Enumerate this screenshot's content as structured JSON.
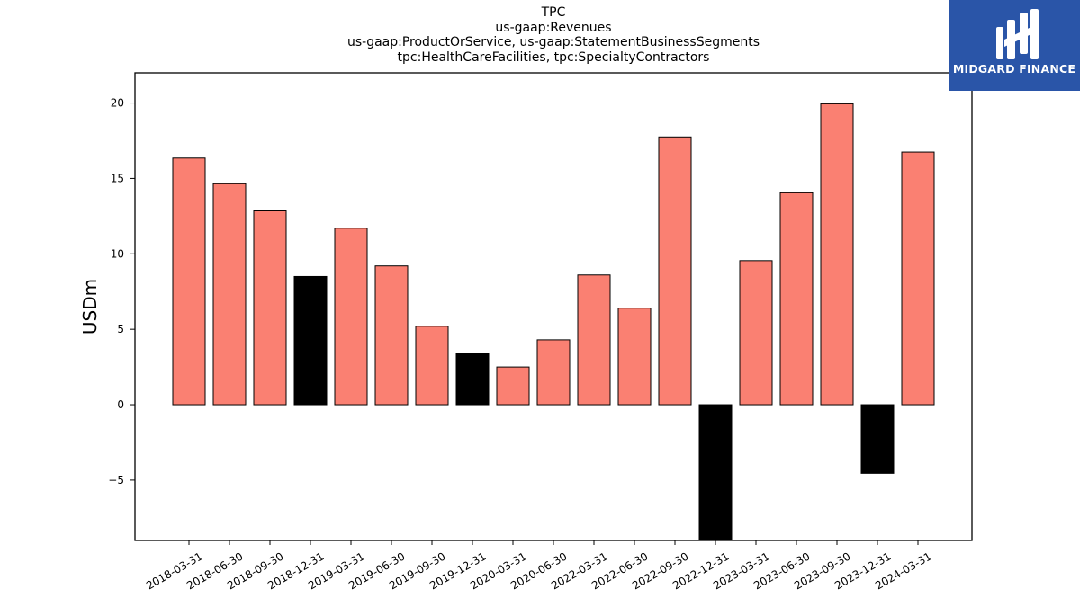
{
  "chart_data": {
    "type": "bar",
    "title_lines": [
      "TPC",
      "us-gaap:Revenues",
      "us-gaap:ProductOrService, us-gaap:StatementBusinessSegments",
      "tpc:HealthCareFacilities, tpc:SpecialtyContractors"
    ],
    "xlabel": "",
    "ylabel": "USDm",
    "categories": [
      "2018-03-31",
      "2018-06-30",
      "2018-09-30",
      "2018-12-31",
      "2019-03-31",
      "2019-06-30",
      "2019-09-30",
      "2019-12-31",
      "2020-03-31",
      "2020-06-30",
      "2022-03-31",
      "2022-06-30",
      "2022-09-30",
      "2022-12-31",
      "2023-03-31",
      "2023-06-30",
      "2023-09-30",
      "2023-12-31",
      "2024-03-31"
    ],
    "values": [
      16.35,
      14.65,
      12.85,
      8.5,
      11.7,
      9.2,
      5.2,
      3.4,
      2.5,
      4.3,
      8.6,
      6.4,
      17.75,
      -9.0,
      9.55,
      14.05,
      19.95,
      -4.55,
      16.75
    ],
    "highlight": [
      false,
      false,
      false,
      true,
      false,
      false,
      false,
      true,
      false,
      false,
      false,
      false,
      false,
      true,
      false,
      false,
      false,
      true,
      false
    ],
    "ylim": [
      -9,
      22
    ],
    "yticks": [
      -5,
      0,
      5,
      10,
      15,
      20
    ],
    "ytick_labels": [
      "−5",
      "0",
      "5",
      "10",
      "15",
      "20"
    ],
    "grid": false,
    "colors": {
      "bar": "#fa8072",
      "highlight_bar": "#000000",
      "edge": "#000000"
    }
  },
  "logo": {
    "text": "MIDGARD FINANCE",
    "background": "#2a55a8"
  }
}
